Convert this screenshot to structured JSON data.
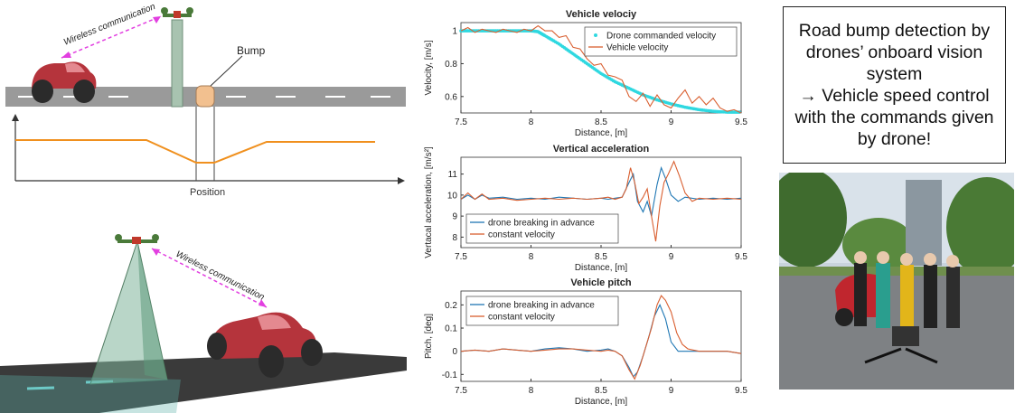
{
  "schematic_top": {
    "wireless_label": "Wireless communication",
    "bump_label": "Bump",
    "position_label": "Position"
  },
  "schematic_bottom": {
    "wireless_label": "Wireless communication"
  },
  "colors": {
    "car_red": "#b5343c",
    "road_gray": "#999999",
    "profile_orange": "#f0901e",
    "wireless_magenta": "#e23fe0",
    "series_cyan": "#2fd8e0",
    "series_blue": "#1f77b4",
    "series_orange": "#d95f30",
    "bump_peach": "#f2c08f"
  },
  "chart_data": [
    {
      "type": "line",
      "title": "Vehicle velociy",
      "xlabel": "Distance, [m]",
      "ylabel": "Velocity, [m/s]",
      "xlim": [
        7.5,
        9.5
      ],
      "ylim": [
        0.5,
        1.05
      ],
      "xticks": [
        "7.5",
        "8",
        "8.5",
        "9",
        "9.5"
      ],
      "yticks": [
        "0.6",
        "0.8",
        "1"
      ],
      "legend_position": "top-right",
      "series": [
        {
          "name": "Drone commanded velocity",
          "style": "marker",
          "color": "#2fd8e0",
          "x": [
            7.5,
            7.6,
            7.7,
            7.8,
            7.9,
            8.0,
            8.05,
            8.1,
            8.2,
            8.3,
            8.4,
            8.5,
            8.6,
            8.7,
            8.8,
            8.9,
            9.0,
            9.1,
            9.2,
            9.3,
            9.4,
            9.5
          ],
          "y": [
            1.0,
            1.0,
            1.0,
            1.0,
            1.0,
            1.0,
            0.995,
            0.97,
            0.92,
            0.86,
            0.8,
            0.74,
            0.69,
            0.65,
            0.61,
            0.58,
            0.555,
            0.535,
            0.52,
            0.51,
            0.505,
            0.505
          ]
        },
        {
          "name": "Vehicle velocity",
          "style": "line",
          "color": "#d95f30",
          "x": [
            7.5,
            7.55,
            7.6,
            7.65,
            7.7,
            7.75,
            7.8,
            7.85,
            7.9,
            7.95,
            8.0,
            8.05,
            8.1,
            8.15,
            8.2,
            8.25,
            8.3,
            8.35,
            8.4,
            8.45,
            8.5,
            8.55,
            8.6,
            8.65,
            8.7,
            8.75,
            8.8,
            8.85,
            8.9,
            8.95,
            9.0,
            9.05,
            9.1,
            9.15,
            9.2,
            9.25,
            9.3,
            9.35,
            9.4,
            9.45,
            9.5
          ],
          "y": [
            1.0,
            1.02,
            0.99,
            1.01,
            1.0,
            0.99,
            1.01,
            1.0,
            0.99,
            1.01,
            1.0,
            1.03,
            1.0,
            1.0,
            0.96,
            0.97,
            0.9,
            0.89,
            0.83,
            0.79,
            0.8,
            0.73,
            0.72,
            0.7,
            0.6,
            0.57,
            0.62,
            0.54,
            0.61,
            0.55,
            0.53,
            0.59,
            0.64,
            0.56,
            0.6,
            0.55,
            0.59,
            0.53,
            0.51,
            0.52,
            0.5
          ]
        }
      ]
    },
    {
      "type": "line",
      "title": "Vertical acceleration",
      "xlabel": "Distance, [m]",
      "ylabel": "Vertacal acceleration, [m/s²]",
      "xlim": [
        7.5,
        9.5
      ],
      "ylim": [
        7.5,
        11.8
      ],
      "xticks": [
        "7.5",
        "8",
        "8.5",
        "9",
        "9.5"
      ],
      "yticks": [
        "8",
        "9",
        "10",
        "11"
      ],
      "legend_position": "bottom-left",
      "series": [
        {
          "name": "drone breaking in advance",
          "color": "#1f77b4",
          "x": [
            7.5,
            7.55,
            7.6,
            7.65,
            7.7,
            7.8,
            7.9,
            8.0,
            8.1,
            8.2,
            8.3,
            8.4,
            8.5,
            8.55,
            8.6,
            8.65,
            8.7,
            8.73,
            8.76,
            8.8,
            8.83,
            8.86,
            8.9,
            8.93,
            8.96,
            9.0,
            9.05,
            9.1,
            9.2,
            9.3,
            9.4,
            9.5
          ],
          "y": [
            9.8,
            10.0,
            9.8,
            10.0,
            9.85,
            9.9,
            9.8,
            9.85,
            9.8,
            9.9,
            9.85,
            9.8,
            9.85,
            9.8,
            9.85,
            9.9,
            10.6,
            11.0,
            9.7,
            9.2,
            9.7,
            9.0,
            10.5,
            11.3,
            10.8,
            10.0,
            9.7,
            9.9,
            9.8,
            9.85,
            9.8,
            9.85
          ]
        },
        {
          "name": "constant velocity",
          "color": "#d95f30",
          "x": [
            7.5,
            7.55,
            7.6,
            7.65,
            7.7,
            7.8,
            7.9,
            8.0,
            8.1,
            8.2,
            8.3,
            8.4,
            8.5,
            8.55,
            8.6,
            8.65,
            8.68,
            8.71,
            8.74,
            8.77,
            8.8,
            8.83,
            8.86,
            8.89,
            8.92,
            8.95,
            8.98,
            9.02,
            9.06,
            9.1,
            9.15,
            9.2,
            9.3,
            9.4,
            9.5
          ],
          "y": [
            9.8,
            10.1,
            9.8,
            10.05,
            9.8,
            9.85,
            9.75,
            9.8,
            9.85,
            9.8,
            9.85,
            9.8,
            9.85,
            9.9,
            9.8,
            9.9,
            10.3,
            11.3,
            10.6,
            9.6,
            9.9,
            10.3,
            9.0,
            7.8,
            9.5,
            10.6,
            11.0,
            11.6,
            10.9,
            10.1,
            9.7,
            9.85,
            9.8,
            9.85,
            9.8
          ]
        }
      ]
    },
    {
      "type": "line",
      "title": "Vehicle pitch",
      "xlabel": "Distance, [m]",
      "ylabel": "Pitch, [deg]",
      "xlim": [
        7.5,
        9.5
      ],
      "ylim": [
        -0.13,
        0.26
      ],
      "xticks": [
        "7.5",
        "8",
        "8.5",
        "9",
        "9.5"
      ],
      "yticks": [
        "-0.1",
        "0",
        "0.1",
        "0.2"
      ],
      "legend_position": "top-left",
      "series": [
        {
          "name": "drone breaking in advance",
          "color": "#1f77b4",
          "x": [
            7.5,
            7.6,
            7.7,
            7.8,
            7.9,
            8.0,
            8.1,
            8.2,
            8.3,
            8.4,
            8.5,
            8.55,
            8.6,
            8.65,
            8.7,
            8.73,
            8.76,
            8.8,
            8.84,
            8.88,
            8.92,
            8.96,
            9.0,
            9.05,
            9.1,
            9.2,
            9.3,
            9.4,
            9.5
          ],
          "y": [
            0.0,
            0.005,
            0.0,
            0.01,
            0.005,
            0.0,
            0.01,
            0.015,
            0.01,
            0.0,
            0.005,
            0.01,
            0.0,
            -0.02,
            -0.07,
            -0.11,
            -0.09,
            -0.02,
            0.06,
            0.15,
            0.2,
            0.14,
            0.04,
            0.0,
            0.0,
            0.0,
            0.0,
            0.0,
            -0.01
          ]
        },
        {
          "name": "constant velocity",
          "color": "#d95f30",
          "x": [
            7.5,
            7.6,
            7.7,
            7.8,
            7.9,
            8.0,
            8.1,
            8.2,
            8.3,
            8.4,
            8.5,
            8.55,
            8.6,
            8.65,
            8.7,
            8.74,
            8.78,
            8.82,
            8.86,
            8.9,
            8.93,
            8.96,
            9.0,
            9.04,
            9.08,
            9.12,
            9.2,
            9.3,
            9.4,
            9.5
          ],
          "y": [
            0.0,
            0.005,
            0.0,
            0.01,
            0.005,
            0.0,
            0.005,
            0.01,
            0.01,
            0.005,
            0.0,
            0.005,
            0.0,
            -0.02,
            -0.08,
            -0.12,
            -0.06,
            0.02,
            0.1,
            0.2,
            0.24,
            0.22,
            0.17,
            0.08,
            0.03,
            0.01,
            0.0,
            0.0,
            0.0,
            -0.01
          ]
        }
      ]
    }
  ],
  "note": {
    "lines": [
      "Road bump detection by",
      "drones’ onboard vision",
      "system",
      "→ Vehicle speed control",
      "with the commands given",
      "by drone!"
    ]
  }
}
